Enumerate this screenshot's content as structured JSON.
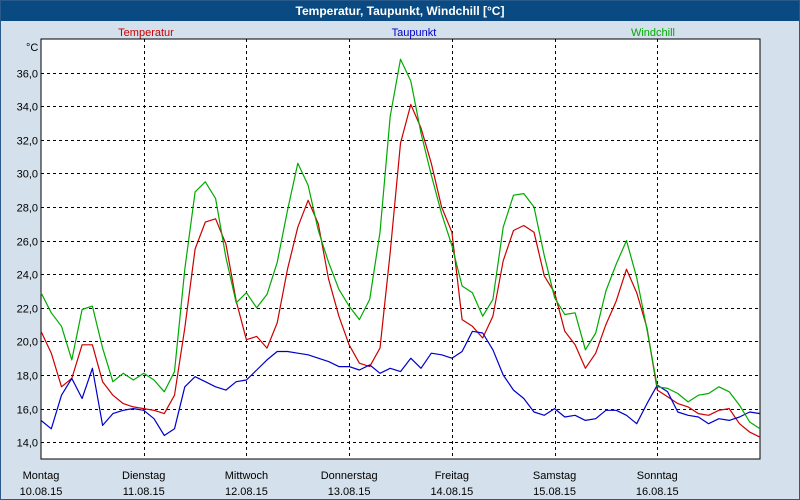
{
  "window": {
    "title": "Temperatur, Taupunkt, Windchill [°C]"
  },
  "colors": {
    "temperatur": "#cc0000",
    "taupunkt": "#0000cc",
    "windchill": "#00aa00",
    "plot_bg": "#ffffff",
    "frame_bg": "#d4e0ec",
    "title_bg": "#0a4a82"
  },
  "chart_data": {
    "type": "line",
    "title": "Temperatur, Taupunkt, Windchill [°C]",
    "ylabel": "°C",
    "xlabel": "",
    "ylim": [
      13.0,
      38.0
    ],
    "xlim": [
      0,
      7
    ],
    "y_ticks": [
      "14,0",
      "16,0",
      "18,0",
      "20,0",
      "22,0",
      "24,0",
      "26,0",
      "28,0",
      "30,0",
      "32,0",
      "34,0",
      "36,0"
    ],
    "y_tick_values": [
      14,
      16,
      18,
      20,
      22,
      24,
      26,
      28,
      30,
      32,
      34,
      36
    ],
    "x_ticks": [
      {
        "day": "Montag",
        "date": "10.08.15",
        "x": 0
      },
      {
        "day": "Dienstag",
        "date": "11.08.15",
        "x": 1
      },
      {
        "day": "Mittwoch",
        "date": "12.08.15",
        "x": 2
      },
      {
        "day": "Donnerstag",
        "date": "13.08.15",
        "x": 3
      },
      {
        "day": "Freitag",
        "date": "14.08.15",
        "x": 4
      },
      {
        "day": "Samstag",
        "date": "15.08.15",
        "x": 5
      },
      {
        "day": "Sonntag",
        "date": "16.08.15",
        "x": 6
      }
    ],
    "grid": true,
    "legend": [
      {
        "name": "Temperatur",
        "color_key": "temperatur"
      },
      {
        "name": "Taupunkt",
        "color_key": "taupunkt"
      },
      {
        "name": "Windchill",
        "color_key": "windchill"
      }
    ],
    "series": [
      {
        "name": "Temperatur",
        "color_key": "temperatur",
        "x": [
          0,
          0.1,
          0.2,
          0.3,
          0.4,
          0.5,
          0.6,
          0.7,
          0.8,
          0.9,
          1.0,
          1.1,
          1.2,
          1.3,
          1.4,
          1.5,
          1.6,
          1.7,
          1.8,
          1.9,
          2.0,
          2.1,
          2.2,
          2.3,
          2.4,
          2.5,
          2.6,
          2.7,
          2.8,
          2.9,
          3.0,
          3.1,
          3.2,
          3.3,
          3.4,
          3.5,
          3.6,
          3.7,
          3.8,
          3.9,
          4.0,
          4.1,
          4.2,
          4.3,
          4.4,
          4.5,
          4.6,
          4.7,
          4.8,
          4.9,
          5.0,
          5.1,
          5.2,
          5.3,
          5.4,
          5.5,
          5.6,
          5.7,
          5.8,
          5.9,
          6.0,
          6.1,
          6.2,
          6.3,
          6.4,
          6.5,
          6.6,
          6.7,
          6.8,
          6.9,
          7.0
        ],
        "values": [
          20.6,
          19.3,
          17.3,
          17.8,
          19.8,
          19.8,
          17.6,
          16.8,
          16.3,
          16.1,
          16.0,
          15.9,
          15.7,
          16.8,
          20.8,
          25.5,
          27.1,
          27.3,
          25.8,
          22.4,
          20.1,
          20.3,
          19.6,
          21.1,
          24.3,
          26.8,
          28.4,
          27.0,
          23.7,
          21.5,
          19.8,
          18.7,
          18.5,
          19.6,
          25.3,
          31.8,
          34.1,
          32.7,
          30.6,
          28.0,
          26.5,
          21.3,
          20.9,
          20.2,
          21.5,
          24.8,
          26.6,
          26.9,
          26.5,
          23.9,
          22.9,
          20.6,
          19.8,
          18.4,
          19.3,
          21.0,
          22.4,
          24.3,
          22.9,
          20.8,
          17.1,
          16.7,
          16.3,
          16.1,
          15.7,
          15.6,
          15.9,
          16.0,
          15.1,
          14.6,
          14.3
        ]
      },
      {
        "name": "Taupunkt",
        "color_key": "taupunkt",
        "x": [
          0,
          0.1,
          0.2,
          0.3,
          0.4,
          0.5,
          0.6,
          0.7,
          0.8,
          0.9,
          1.0,
          1.1,
          1.2,
          1.3,
          1.4,
          1.5,
          1.6,
          1.7,
          1.8,
          1.9,
          2.0,
          2.1,
          2.2,
          2.3,
          2.4,
          2.5,
          2.6,
          2.7,
          2.8,
          2.9,
          3.0,
          3.1,
          3.2,
          3.3,
          3.4,
          3.5,
          3.6,
          3.7,
          3.8,
          3.9,
          4.0,
          4.1,
          4.2,
          4.3,
          4.4,
          4.5,
          4.6,
          4.7,
          4.8,
          4.9,
          5.0,
          5.1,
          5.2,
          5.3,
          5.4,
          5.5,
          5.6,
          5.7,
          5.8,
          5.9,
          6.0,
          6.1,
          6.2,
          6.3,
          6.4,
          6.5,
          6.6,
          6.7,
          6.8,
          6.9,
          7.0
        ],
        "values": [
          15.3,
          14.8,
          16.8,
          17.8,
          16.6,
          18.4,
          15.0,
          15.7,
          15.9,
          16.0,
          15.9,
          15.4,
          14.4,
          14.8,
          17.3,
          17.9,
          17.6,
          17.3,
          17.1,
          17.6,
          17.7,
          18.3,
          18.9,
          19.4,
          19.4,
          19.3,
          19.2,
          19.0,
          18.8,
          18.5,
          18.5,
          18.3,
          18.6,
          18.1,
          18.4,
          18.2,
          19.0,
          18.4,
          19.3,
          19.2,
          19.0,
          19.4,
          20.6,
          20.5,
          19.5,
          18.0,
          17.1,
          16.6,
          15.8,
          15.6,
          16.0,
          15.5,
          15.6,
          15.3,
          15.4,
          15.9,
          15.9,
          15.6,
          15.1,
          16.3,
          17.4,
          17.0,
          15.8,
          15.6,
          15.5,
          15.1,
          15.4,
          15.3,
          15.5,
          15.8,
          15.7
        ]
      },
      {
        "name": "Windchill",
        "color_key": "windchill",
        "x": [
          0,
          0.1,
          0.2,
          0.3,
          0.4,
          0.5,
          0.6,
          0.7,
          0.8,
          0.9,
          1.0,
          1.1,
          1.2,
          1.3,
          1.4,
          1.5,
          1.6,
          1.7,
          1.8,
          1.9,
          2.0,
          2.1,
          2.2,
          2.3,
          2.4,
          2.5,
          2.6,
          2.7,
          2.8,
          2.9,
          3.0,
          3.1,
          3.2,
          3.3,
          3.4,
          3.5,
          3.6,
          3.7,
          3.8,
          3.9,
          4.0,
          4.1,
          4.2,
          4.3,
          4.4,
          4.5,
          4.6,
          4.7,
          4.8,
          4.9,
          5.0,
          5.1,
          5.2,
          5.3,
          5.4,
          5.5,
          5.6,
          5.7,
          5.8,
          5.9,
          6.0,
          6.1,
          6.2,
          6.3,
          6.4,
          6.5,
          6.6,
          6.7,
          6.8,
          6.9,
          7.0
        ],
        "values": [
          22.9,
          21.7,
          20.9,
          18.9,
          21.9,
          22.1,
          19.6,
          17.6,
          18.1,
          17.7,
          18.1,
          17.7,
          17.0,
          18.2,
          24.3,
          28.9,
          29.5,
          28.5,
          25.0,
          22.3,
          22.9,
          22.0,
          22.8,
          24.7,
          27.8,
          30.6,
          29.3,
          26.6,
          24.7,
          23.1,
          22.1,
          21.3,
          22.5,
          26.5,
          33.4,
          36.8,
          35.5,
          32.4,
          29.9,
          27.6,
          25.7,
          23.3,
          22.9,
          21.5,
          22.5,
          26.8,
          28.7,
          28.8,
          28.0,
          25.1,
          22.6,
          21.6,
          21.7,
          19.5,
          20.5,
          23.0,
          24.6,
          26.0,
          23.8,
          20.7,
          17.3,
          17.2,
          16.9,
          16.4,
          16.8,
          16.9,
          17.3,
          17.0,
          16.2,
          15.2,
          14.8
        ]
      }
    ]
  }
}
